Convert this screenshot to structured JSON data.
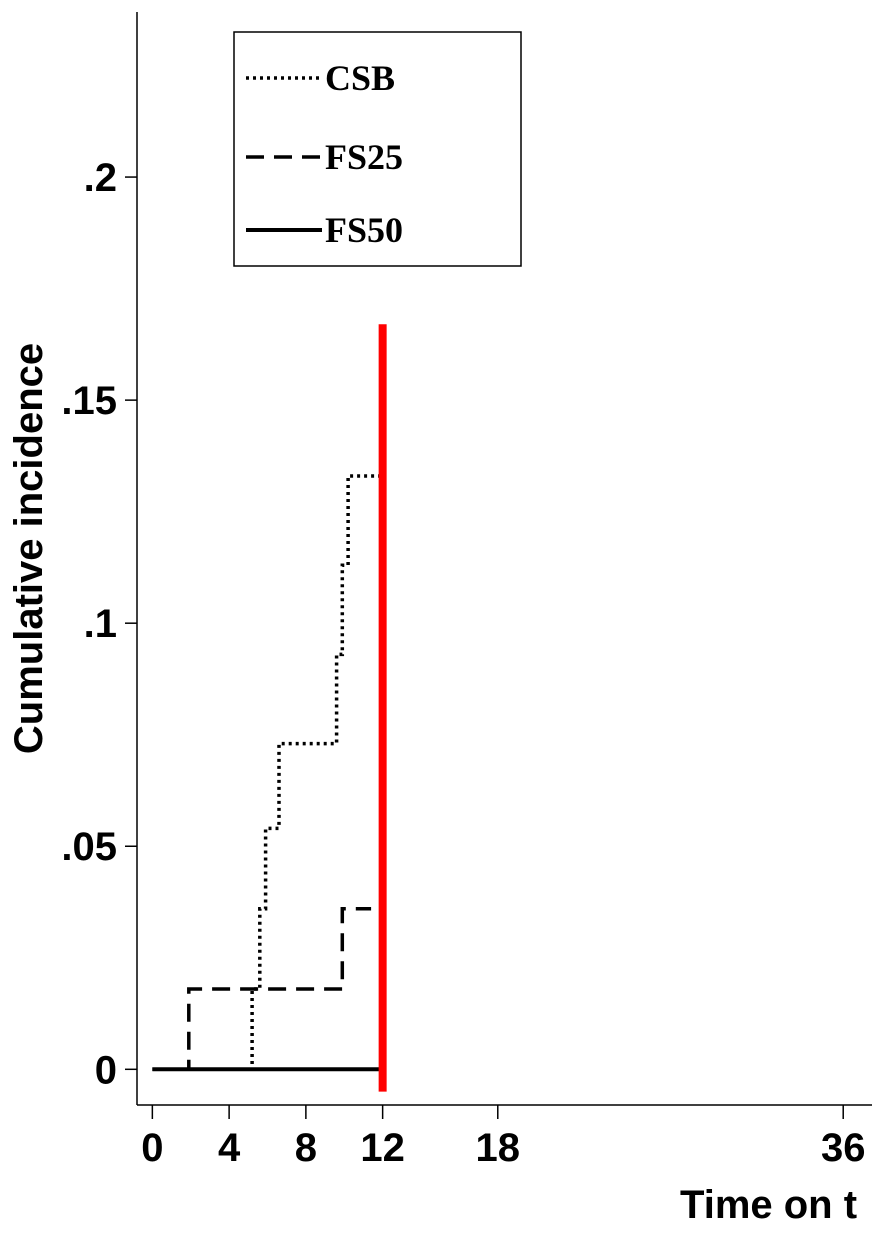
{
  "chart_data": {
    "type": "line",
    "step": true,
    "xlabel": "Time on t",
    "ylabel": "Cumulative incidence",
    "xticks": [
      0,
      4,
      8,
      12,
      18,
      36
    ],
    "xtick_labels": [
      "0",
      "4",
      "8",
      "12",
      "18",
      "36"
    ],
    "yticks": [
      0,
      0.05,
      0.1,
      0.15,
      0.2
    ],
    "ytick_labels": [
      "0",
      ".05",
      ".1",
      ".15",
      ".2"
    ],
    "xlim": [
      -0.8,
      37.5
    ],
    "ylim": [
      -0.008,
      0.237
    ],
    "grid": false,
    "legend_position": "top-left",
    "series": [
      {
        "name": "CSB",
        "style": "dotted",
        "color": "#000000",
        "points": [
          [
            0,
            0
          ],
          [
            5.2,
            0
          ],
          [
            5.2,
            0.018
          ],
          [
            5.6,
            0.018
          ],
          [
            5.6,
            0.036
          ],
          [
            5.9,
            0.036
          ],
          [
            5.9,
            0.054
          ],
          [
            6.6,
            0.054
          ],
          [
            6.6,
            0.073
          ],
          [
            9.6,
            0.073
          ],
          [
            9.6,
            0.093
          ],
          [
            9.9,
            0.093
          ],
          [
            9.9,
            0.113
          ],
          [
            10.2,
            0.113
          ],
          [
            10.2,
            0.133
          ],
          [
            11.9,
            0.133
          ]
        ]
      },
      {
        "name": "FS25",
        "style": "dashed",
        "color": "#000000",
        "points": [
          [
            0,
            0
          ],
          [
            1.9,
            0
          ],
          [
            1.9,
            0.018
          ],
          [
            9.9,
            0.018
          ],
          [
            9.9,
            0.036
          ],
          [
            11.4,
            0.036
          ]
        ]
      },
      {
        "name": "FS50",
        "style": "solid",
        "color": "#000000",
        "points": [
          [
            0,
            0
          ],
          [
            11.9,
            0
          ]
        ]
      }
    ],
    "reference_line": {
      "x": 12,
      "y_range": [
        -0.005,
        0.167
      ],
      "color": "#ff0000"
    }
  }
}
